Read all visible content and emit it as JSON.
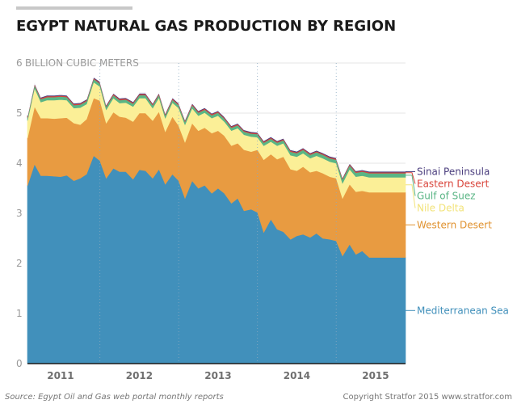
{
  "header": {
    "title": "EGYPT NATURAL GAS PRODUCTION BY REGION"
  },
  "footer": {
    "source": "Source: Egypt Oil and Gas web portal monthly reports",
    "copyright": "Copyright Stratfor 2015   www.stratfor.com"
  },
  "colors": {
    "accent_bar": "#c8c8c8",
    "grid": "#e6e6e6",
    "year_divider": "#8aa9c0"
  },
  "chart_data": {
    "type": "area",
    "stacked": true,
    "title": "EGYPT NATURAL GAS PRODUCTION BY REGION",
    "ylabel": "BILLION CUBIC METERS",
    "ylim": [
      0,
      6
    ],
    "yticks": [
      0,
      1,
      2,
      3,
      4,
      5,
      6
    ],
    "xlim": [
      2010.58,
      2015.38
    ],
    "x_tick_labels": [
      {
        "label": "2011",
        "at": 2011.0
      },
      {
        "label": "2012",
        "at": 2012.0
      },
      {
        "label": "2013",
        "at": 2013.0
      },
      {
        "label": "2014",
        "at": 2014.0
      },
      {
        "label": "2015",
        "at": 2015.0
      }
    ],
    "year_boundaries": [
      2011.5,
      2012.5,
      2013.5,
      2014.5
    ],
    "grid": true,
    "legend_placement": "right, inline at series end",
    "x": [
      2010.58,
      2010.67,
      2010.75,
      2010.83,
      2010.92,
      2011.0,
      2011.08,
      2011.17,
      2011.25,
      2011.33,
      2011.42,
      2011.5,
      2011.58,
      2011.67,
      2011.75,
      2011.83,
      2011.92,
      2012.0,
      2012.08,
      2012.17,
      2012.25,
      2012.33,
      2012.42,
      2012.5,
      2012.58,
      2012.67,
      2012.75,
      2012.83,
      2012.92,
      2013.0,
      2013.08,
      2013.17,
      2013.25,
      2013.33,
      2013.42,
      2013.5,
      2013.58,
      2013.67,
      2013.75,
      2013.83,
      2013.92,
      2014.0,
      2014.08,
      2014.17,
      2014.25,
      2014.33,
      2014.42,
      2014.5,
      2014.58,
      2014.67,
      2014.75,
      2014.83,
      2014.92,
      2015.0,
      2015.08,
      2015.17,
      2015.25,
      2015.33,
      2015.38
    ],
    "series": [
      {
        "name": "Mediterranean Sea",
        "color": "#4190bb",
        "values": [
          3.55,
          3.98,
          3.75,
          3.75,
          3.74,
          3.73,
          3.76,
          3.65,
          3.7,
          3.78,
          4.15,
          4.05,
          3.7,
          3.9,
          3.83,
          3.83,
          3.68,
          3.87,
          3.85,
          3.7,
          3.88,
          3.58,
          3.78,
          3.65,
          3.3,
          3.65,
          3.5,
          3.56,
          3.4,
          3.5,
          3.4,
          3.2,
          3.3,
          3.05,
          3.08,
          3.02,
          2.62,
          2.88,
          2.68,
          2.63,
          2.48,
          2.55,
          2.58,
          2.52,
          2.6,
          2.5,
          2.48,
          2.45,
          2.15,
          2.38,
          2.18,
          2.25,
          2.12,
          2.12,
          2.12,
          2.12,
          2.12,
          2.12,
          2.12
        ]
      },
      {
        "name": "Western Desert",
        "color": "#e89b41",
        "values": [
          0.95,
          1.15,
          1.15,
          1.15,
          1.15,
          1.17,
          1.15,
          1.15,
          1.07,
          1.1,
          1.15,
          1.2,
          1.1,
          1.12,
          1.1,
          1.08,
          1.15,
          1.13,
          1.15,
          1.15,
          1.15,
          1.05,
          1.15,
          1.1,
          1.12,
          1.15,
          1.15,
          1.15,
          1.2,
          1.15,
          1.15,
          1.15,
          1.1,
          1.22,
          1.15,
          1.25,
          1.45,
          1.3,
          1.4,
          1.5,
          1.4,
          1.3,
          1.35,
          1.3,
          1.25,
          1.3,
          1.25,
          1.25,
          1.15,
          1.2,
          1.25,
          1.2,
          1.3,
          1.3,
          1.3,
          1.3,
          1.3,
          1.3,
          1.3
        ]
      },
      {
        "name": "Nile Delta",
        "color": "#fbef97",
        "values": [
          0.35,
          0.37,
          0.32,
          0.36,
          0.37,
          0.37,
          0.35,
          0.3,
          0.34,
          0.3,
          0.32,
          0.28,
          0.27,
          0.28,
          0.27,
          0.3,
          0.3,
          0.3,
          0.3,
          0.25,
          0.28,
          0.27,
          0.28,
          0.35,
          0.35,
          0.3,
          0.3,
          0.3,
          0.3,
          0.3,
          0.28,
          0.3,
          0.3,
          0.3,
          0.3,
          0.25,
          0.28,
          0.25,
          0.27,
          0.27,
          0.28,
          0.28,
          0.27,
          0.28,
          0.3,
          0.3,
          0.3,
          0.3,
          0.3,
          0.3,
          0.3,
          0.3,
          0.3,
          0.3,
          0.3,
          0.3,
          0.3,
          0.3,
          0.3
        ]
      },
      {
        "name": "Gulf of Suez",
        "color": "#5ab585",
        "values": [
          0.06,
          0.06,
          0.06,
          0.06,
          0.06,
          0.06,
          0.06,
          0.06,
          0.06,
          0.06,
          0.06,
          0.06,
          0.06,
          0.06,
          0.06,
          0.06,
          0.06,
          0.06,
          0.06,
          0.06,
          0.06,
          0.06,
          0.06,
          0.06,
          0.06,
          0.06,
          0.06,
          0.06,
          0.06,
          0.06,
          0.06,
          0.06,
          0.06,
          0.06,
          0.06,
          0.06,
          0.06,
          0.06,
          0.06,
          0.06,
          0.07,
          0.07,
          0.07,
          0.07,
          0.07,
          0.07,
          0.07,
          0.07,
          0.08,
          0.08,
          0.08,
          0.08,
          0.08,
          0.08,
          0.08,
          0.08,
          0.08,
          0.08,
          0.08
        ]
      },
      {
        "name": "Eastern Desert",
        "color": "#d9453b",
        "values": [
          0.02,
          0.02,
          0.02,
          0.02,
          0.02,
          0.02,
          0.02,
          0.02,
          0.02,
          0.02,
          0.02,
          0.02,
          0.02,
          0.02,
          0.02,
          0.02,
          0.02,
          0.02,
          0.02,
          0.02,
          0.02,
          0.02,
          0.02,
          0.02,
          0.02,
          0.02,
          0.02,
          0.02,
          0.02,
          0.02,
          0.02,
          0.02,
          0.02,
          0.02,
          0.02,
          0.02,
          0.02,
          0.02,
          0.02,
          0.02,
          0.02,
          0.02,
          0.02,
          0.02,
          0.02,
          0.02,
          0.02,
          0.02,
          0.02,
          0.02,
          0.02,
          0.02,
          0.02,
          0.02,
          0.02,
          0.02,
          0.02,
          0.02,
          0.02
        ]
      },
      {
        "name": "Sinai Peninsula",
        "color": "#4b3e7e",
        "values": [
          0.02,
          0.02,
          0.02,
          0.02,
          0.02,
          0.02,
          0.02,
          0.02,
          0.02,
          0.02,
          0.02,
          0.02,
          0.02,
          0.02,
          0.02,
          0.02,
          0.02,
          0.02,
          0.02,
          0.02,
          0.02,
          0.02,
          0.02,
          0.02,
          0.02,
          0.02,
          0.02,
          0.02,
          0.02,
          0.02,
          0.02,
          0.02,
          0.02,
          0.02,
          0.02,
          0.02,
          0.02,
          0.02,
          0.02,
          0.02,
          0.02,
          0.02,
          0.02,
          0.02,
          0.02,
          0.02,
          0.02,
          0.02,
          0.02,
          0.02,
          0.02,
          0.02,
          0.02,
          0.02,
          0.02,
          0.02,
          0.02,
          0.02,
          0.02
        ]
      }
    ]
  }
}
